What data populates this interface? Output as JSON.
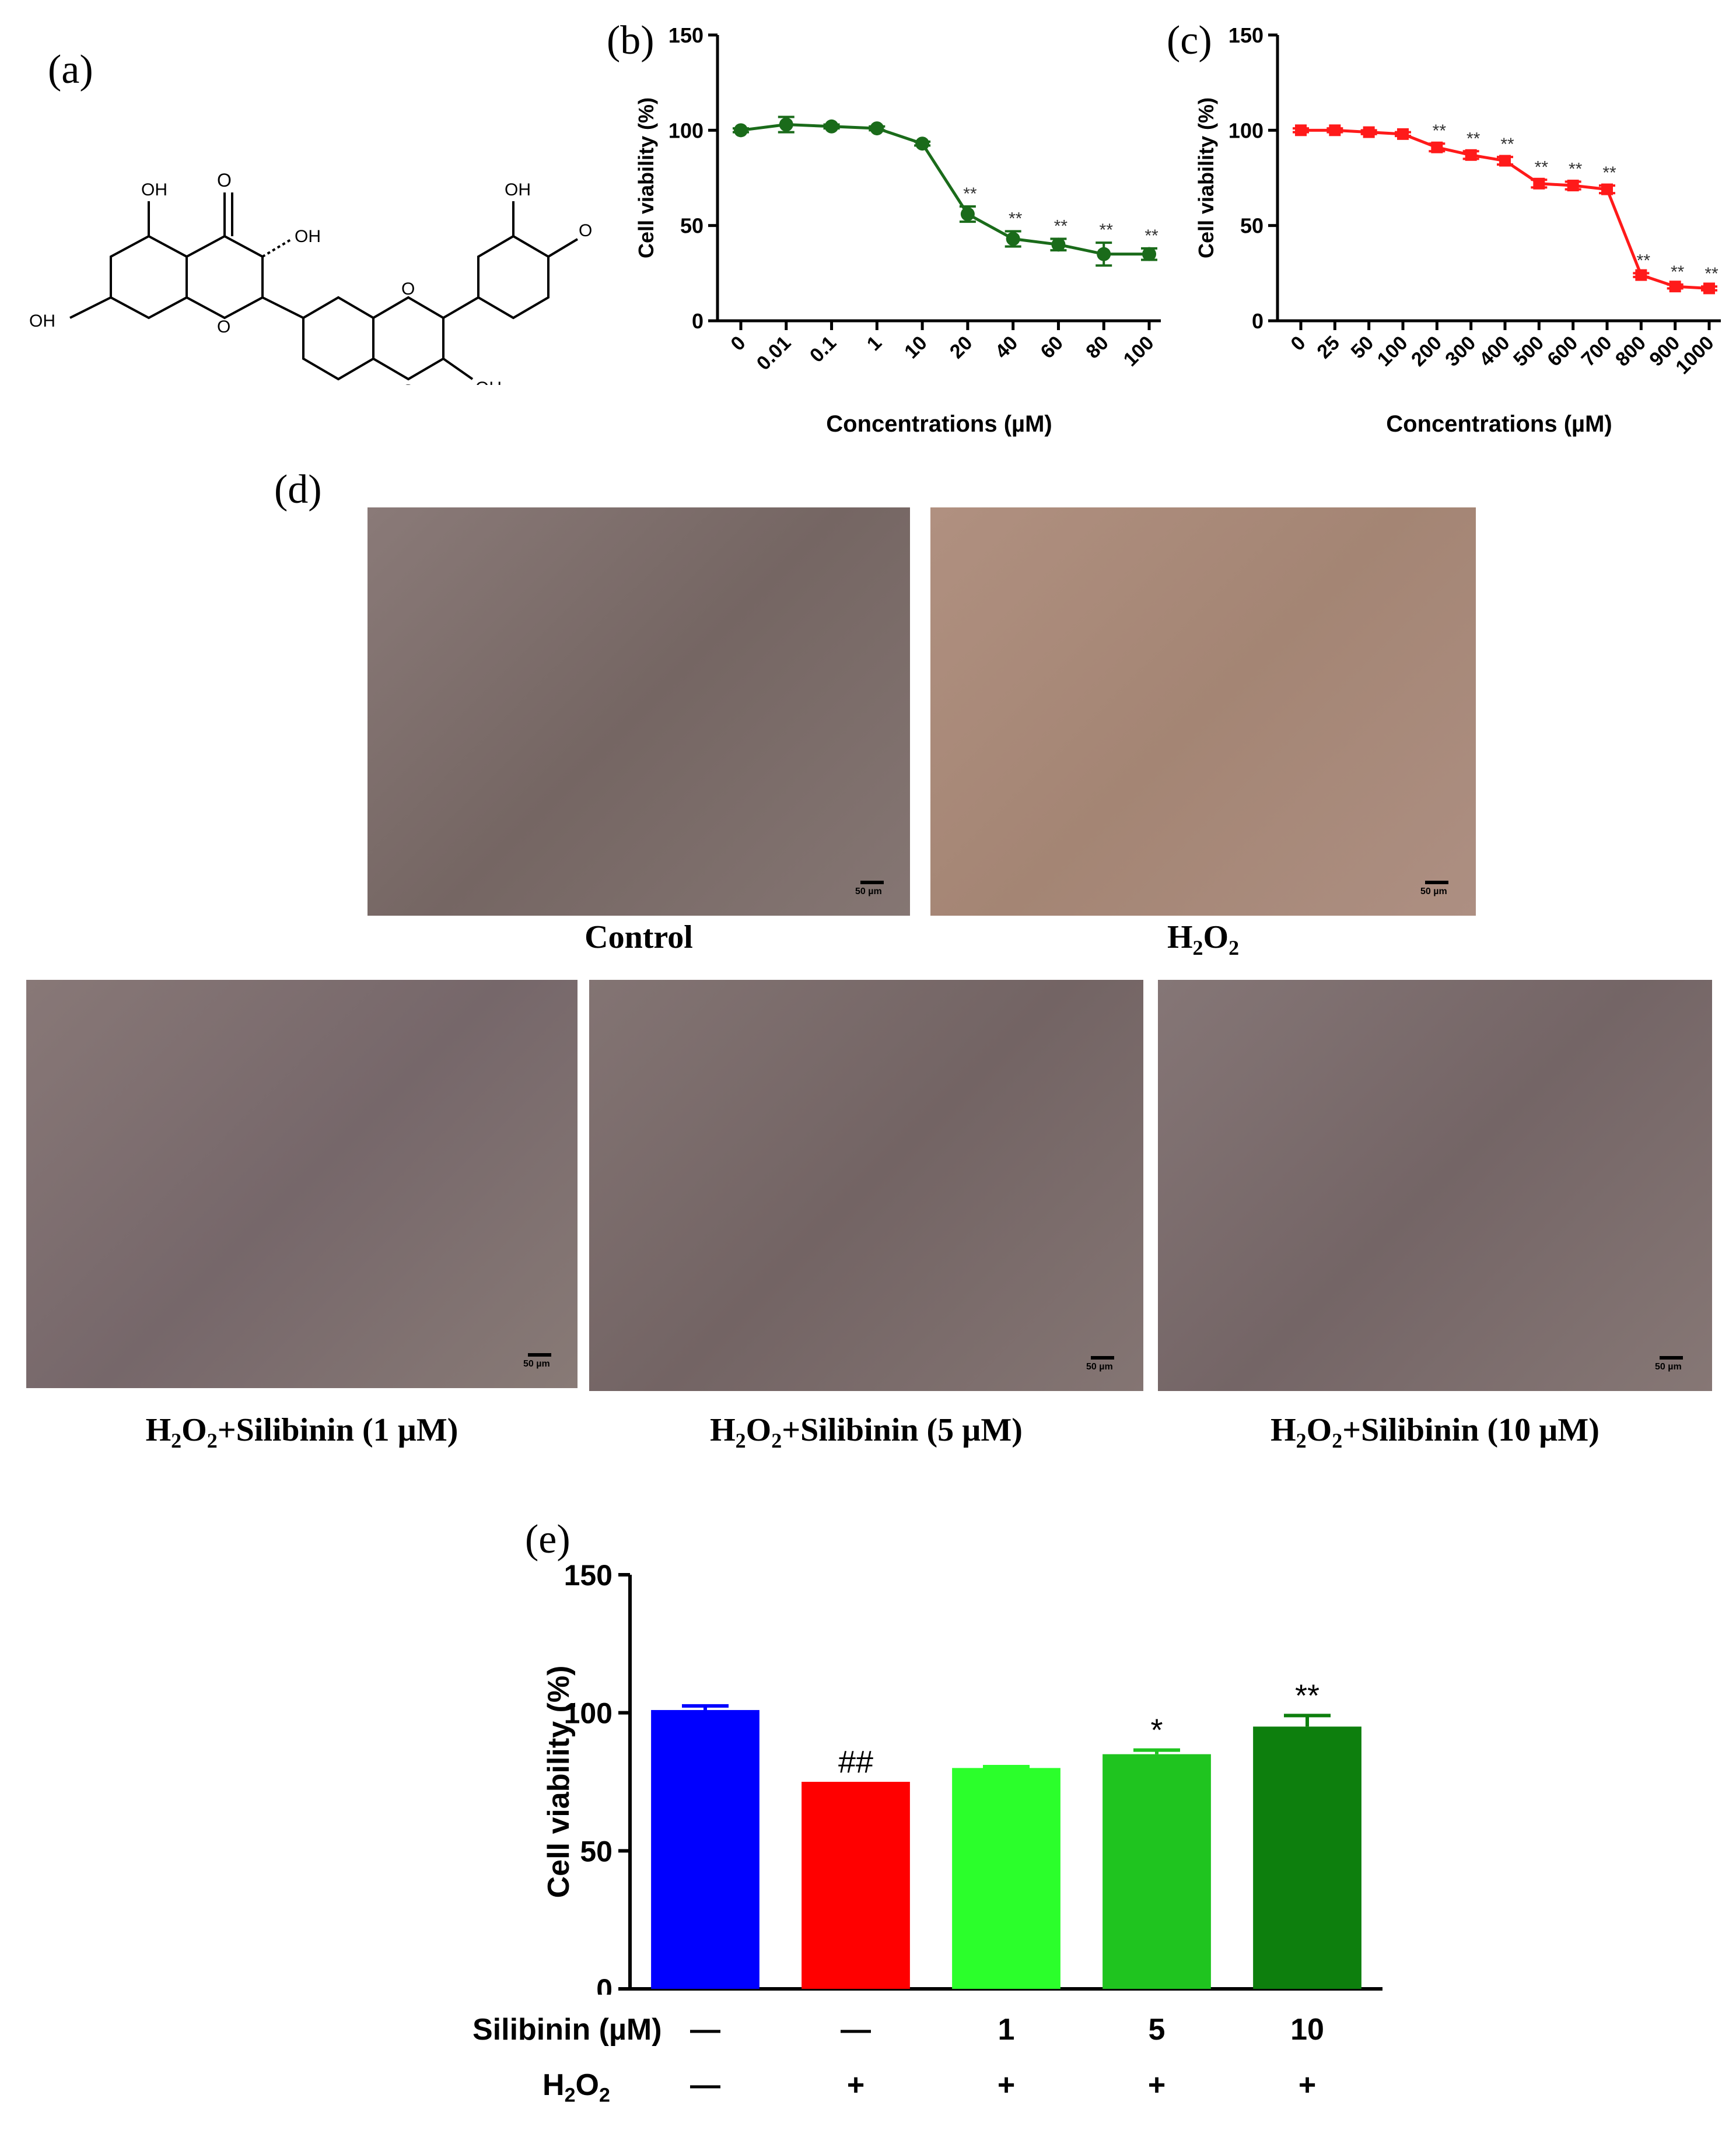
{
  "panels": {
    "a": "(a)",
    "b": "(b)",
    "c": "(c)",
    "d": "(d)",
    "e": "(e)"
  },
  "structure": {
    "labels": [
      "OH",
      "O",
      "OH",
      "OH",
      "O",
      "O",
      "O",
      "OH",
      "OH",
      "O"
    ]
  },
  "chart_data": [
    {
      "id": "b",
      "type": "line",
      "xlabel": "Concentrations (µM)",
      "ylabel": "Cell viability (%)",
      "ylim": [
        0,
        150
      ],
      "yticks": [
        0,
        50,
        100,
        150
      ],
      "categories": [
        "0",
        "0.01",
        "0.1",
        "1",
        "10",
        "20",
        "40",
        "60",
        "80",
        "100"
      ],
      "values": [
        100,
        103,
        102,
        101,
        93,
        56,
        43,
        40,
        35,
        35
      ],
      "errors": [
        1,
        4,
        1,
        1,
        1,
        4,
        4,
        3,
        6,
        3
      ],
      "annotations": [
        "",
        "",
        "",
        "",
        "",
        "**",
        "**",
        "**",
        "**",
        "**"
      ],
      "color": "#1a6b1a"
    },
    {
      "id": "c",
      "type": "line",
      "xlabel": "Concentrations (µM)",
      "ylabel": "Cell viability (%)",
      "ylim": [
        0,
        150
      ],
      "yticks": [
        0,
        50,
        100,
        150
      ],
      "categories": [
        "0",
        "25",
        "50",
        "100",
        "200",
        "300",
        "400",
        "500",
        "600",
        "700",
        "800",
        "900",
        "1000"
      ],
      "values": [
        100,
        100,
        99,
        98,
        91,
        87,
        84,
        72,
        71,
        69,
        24,
        18,
        17
      ],
      "errors": [
        1,
        1,
        1,
        1,
        2,
        2,
        2,
        2,
        2,
        2,
        1,
        1,
        1
      ],
      "annotations": [
        "",
        "",
        "",
        "",
        "**",
        "**",
        "**",
        "**",
        "**",
        "**",
        "**",
        "**",
        "**"
      ],
      "color": "#ff1a1a"
    },
    {
      "id": "e",
      "type": "bar",
      "ylabel": "Cell viability (%)",
      "ylim": [
        0,
        150
      ],
      "yticks": [
        0,
        50,
        100,
        150
      ],
      "values": [
        101,
        75,
        80,
        85,
        95
      ],
      "errors": [
        1.5,
        0,
        0.5,
        1.5,
        4
      ],
      "colors": [
        "#0000ff",
        "#ff0000",
        "#2bff2b",
        "#1fc41f",
        "#0d7f0d"
      ],
      "annotations": [
        "",
        "##",
        "",
        "*",
        "**"
      ],
      "silibinin_label": "Silibinin (µM)",
      "silibinin": [
        "—",
        "—",
        "1",
        "5",
        "10"
      ],
      "h2o2_label": "H2O2",
      "h2o2": [
        "—",
        "+",
        "+",
        "+",
        "+"
      ]
    }
  ],
  "micrographs": {
    "scale": "50 µm",
    "captions": {
      "control": "Control",
      "h2o2": "H2O2",
      "s1": "H2O2+Silibinin (1 µM)",
      "s5": "H2O2+Silibinin (5 µM)",
      "s10": "H2O2+Silibinin (10 µM)"
    }
  }
}
